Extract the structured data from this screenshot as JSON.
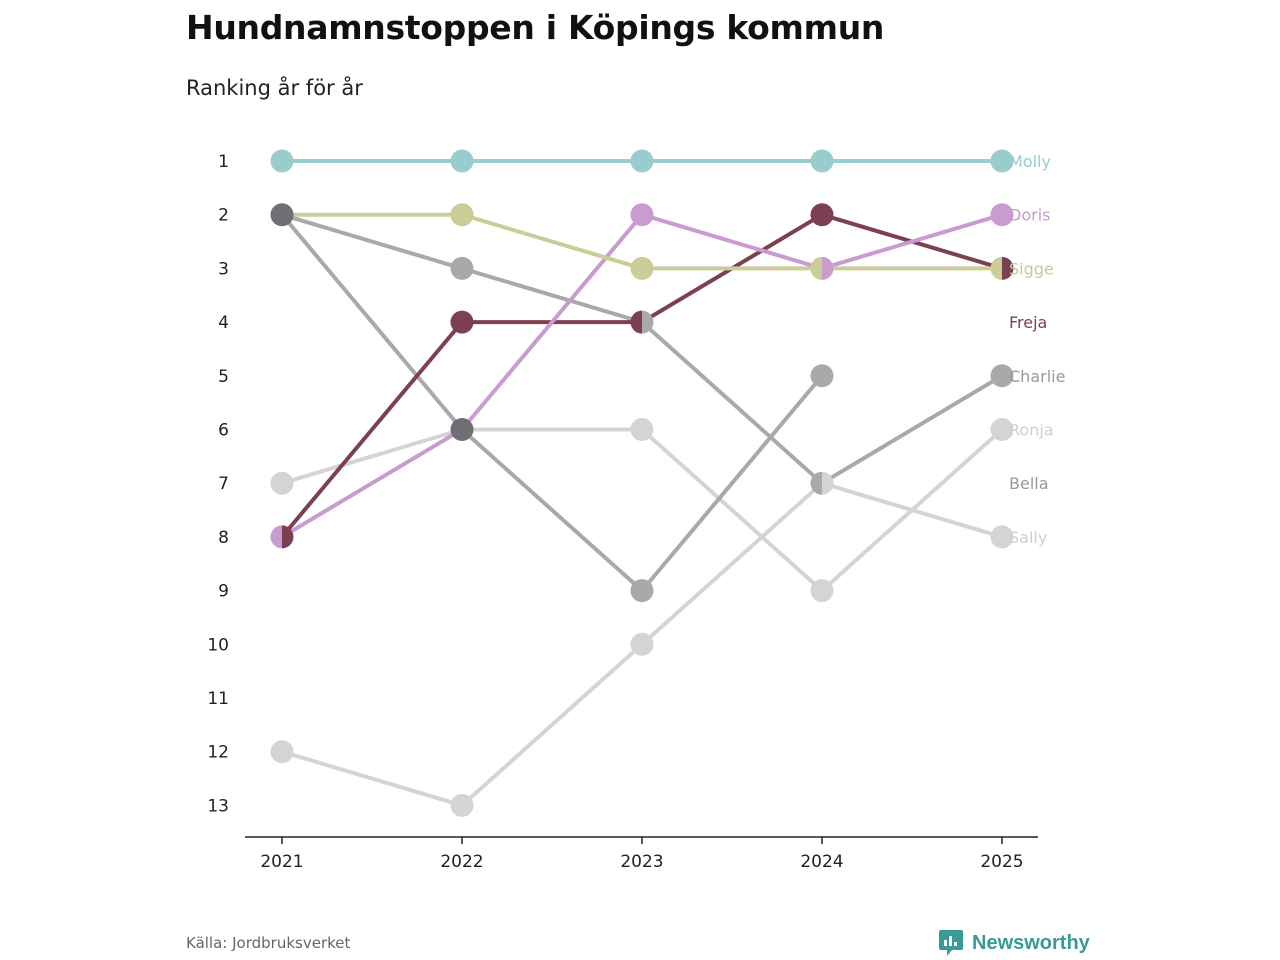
{
  "title": "Hundnamnstoppen i Köpings kommun",
  "subtitle": "Ranking år för år",
  "source": "Källa: Jordbruksverket",
  "brand": "Newsworthy",
  "chart_data": {
    "type": "line",
    "title": "Hundnamnstoppen i Köpings kommun",
    "subtitle": "Ranking år för år",
    "xlabel": "",
    "ylabel": "",
    "x": [
      "2021",
      "2022",
      "2023",
      "2024",
      "2025"
    ],
    "y_ticks": [
      1,
      2,
      3,
      4,
      5,
      6,
      7,
      8,
      9,
      10,
      11,
      12,
      13
    ],
    "ylim": [
      13,
      1
    ],
    "y_inverted": true,
    "series": [
      {
        "name": "Sally",
        "color": "#d4d4d4",
        "values": [
          12,
          13,
          10,
          7,
          8
        ],
        "label_color": "#cfcfcf"
      },
      {
        "name": "Ronja",
        "color": "#d4d4d4",
        "values": [
          7,
          6,
          6,
          9,
          6
        ],
        "label_color": "#cfcfcf"
      },
      {
        "name": "Bella",
        "color": "#a9a9aa",
        "values": [
          2,
          6,
          9,
          5,
          null
        ],
        "label_color": "#999999"
      },
      {
        "name": "Charlie",
        "color": "#a9a9aa",
        "values": [
          2,
          3,
          4,
          7,
          5
        ],
        "label_color": "#999999"
      },
      {
        "name": "Freja",
        "color": "#7d3f52",
        "values": [
          8,
          4,
          4,
          2,
          3
        ],
        "label_color": "#7d3f52"
      },
      {
        "name": "Doris",
        "color": "#c99bd0",
        "values": [
          8,
          6,
          2,
          3,
          2
        ],
        "label_color": "#c99bd0"
      },
      {
        "name": "Sigge",
        "color": "#cccc99",
        "values": [
          2,
          2,
          3,
          3,
          3
        ],
        "label_color": "#c9c98f"
      },
      {
        "name": "Molly",
        "color": "#99cccc",
        "values": [
          1,
          1,
          1,
          1,
          1
        ],
        "label_color": "#99cccc"
      }
    ],
    "overlap_markers": [
      {
        "x": "2021",
        "value": 2,
        "color": "#6f6e75"
      },
      {
        "x": "2022",
        "value": 6,
        "color": "#6f6e75"
      }
    ],
    "end_labels": [
      {
        "name": "Molly",
        "rank": 1
      },
      {
        "name": "Doris",
        "rank": 2
      },
      {
        "name": "Sigge",
        "rank": 3
      },
      {
        "name": "Freja",
        "rank": 4
      },
      {
        "name": "Charlie",
        "rank": 5
      },
      {
        "name": "Ronja",
        "rank": 6
      },
      {
        "name": "Bella",
        "rank": 7
      },
      {
        "name": "Sally",
        "rank": 8
      }
    ]
  }
}
